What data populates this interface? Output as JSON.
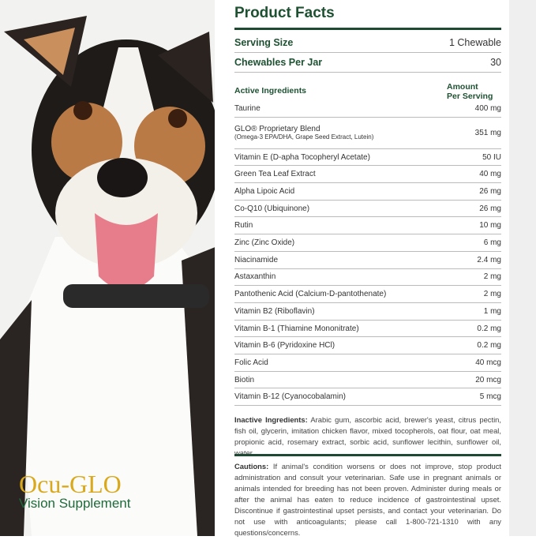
{
  "title": "Product Facts",
  "serving": {
    "label": "Serving Size",
    "value": "1 Chewable"
  },
  "per_jar": {
    "label": "Chewables Per Jar",
    "value": "30"
  },
  "header": {
    "ingredients": "Active Ingredients",
    "amount1": "Amount",
    "amount2": "Per Serving"
  },
  "rows": [
    {
      "name": "Taurine",
      "amount": "400 mg"
    },
    {
      "name": "GLO® Proprietary Blend",
      "sub": "(Omega-3 EPA/DHA, Grape Seed Extract, Lutein)",
      "amount": "351 mg"
    },
    {
      "name": "Vitamin E (D-apha Tocopheryl Acetate)",
      "amount": "50 IU"
    },
    {
      "name": "Green Tea Leaf Extract",
      "amount": "40 mg"
    },
    {
      "name": "Alpha Lipoic Acid",
      "amount": "26 mg"
    },
    {
      "name": "Co-Q10 (Ubiquinone)",
      "amount": "26 mg"
    },
    {
      "name": "Rutin",
      "amount": "10 mg"
    },
    {
      "name": "Zinc (Zinc Oxide)",
      "amount": "6 mg"
    },
    {
      "name": "Niacinamide",
      "amount": "2.4 mg"
    },
    {
      "name": "Astaxanthin",
      "amount": "2 mg"
    },
    {
      "name": "Pantothenic Acid (Calcium-D-pantothenate)",
      "amount": "2 mg"
    },
    {
      "name": "Vitamin B2 (Riboflavin)",
      "amount": "1 mg"
    },
    {
      "name": "Vitamin B-1 (Thiamine Mononitrate)",
      "amount": "0.2 mg"
    },
    {
      "name": "Vitamin B-6 (Pyridoxine HCl)",
      "amount": "0.2 mg"
    },
    {
      "name": "Folic Acid",
      "amount": "40 mcg"
    },
    {
      "name": "Biotin",
      "amount": "20 mcg"
    },
    {
      "name": "Vitamin B-12 (Cyanocobalamin)",
      "amount": "5 mcg"
    }
  ],
  "inactive": {
    "label": "Inactive Ingredients:",
    "text": " Arabic gum, ascorbic acid, brewer's yeast, citrus pectin, fish oil, glycerin, imitation chicken flavor, mixed tocopherols, oat flour, oat meal, propionic acid, rosemary extract, sorbic acid, sunflower lecithin, sunflower oil, water."
  },
  "cautions": {
    "label": "Cautions:",
    "text": " If animal's condition worsens or does not improve, stop product administration and consult your veterinarian. Safe use in pregnant animals or animals intended for breeding has not been proven. Administer during meals or after the animal has eaten to reduce incidence of gastrointestinal upset. Discontinue if gastrointestinal upset persists, and contact your veterinarian. Do not use with anticoagulants; please call 1-800-721-1310 with any questions/concerns."
  },
  "logo": {
    "brand": "Ocu-GLO",
    "tagline": "Vision Supplement"
  }
}
